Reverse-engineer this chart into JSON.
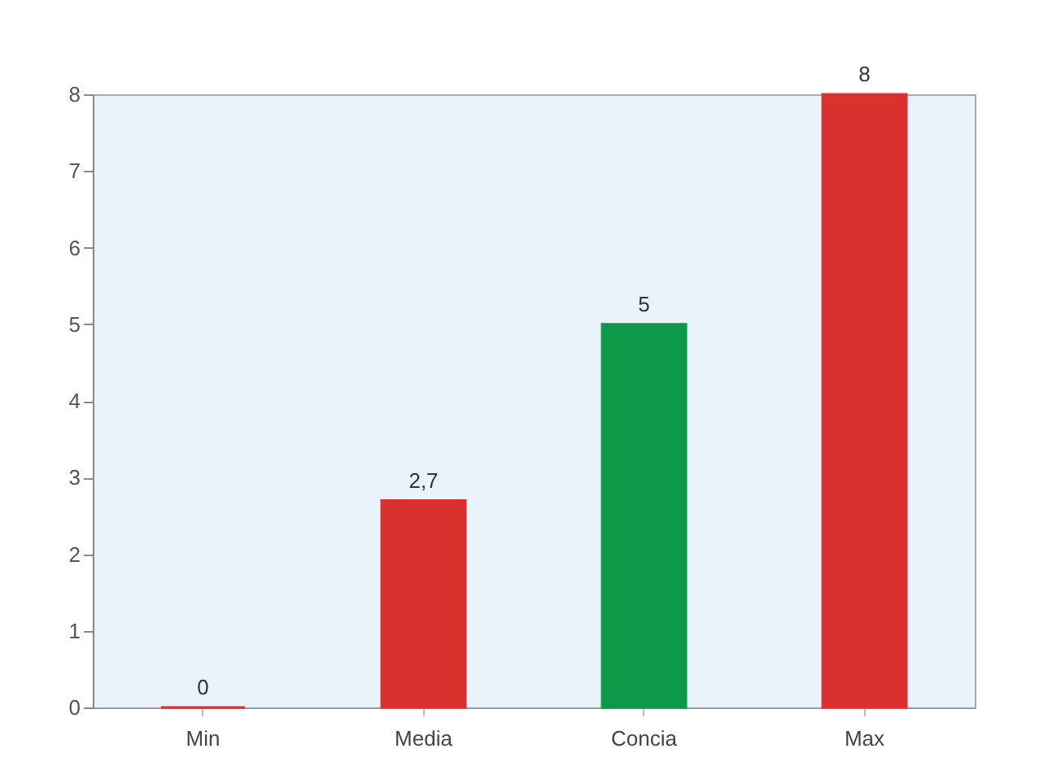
{
  "chart_data": {
    "type": "bar",
    "categories": [
      "Min",
      "Media",
      "Concia",
      "Max"
    ],
    "values": [
      0,
      2.7,
      5,
      8
    ],
    "colors": [
      "#d8312e",
      "#d8312e",
      "#0c9a48",
      "#d8312e"
    ],
    "value_labels": [
      "0",
      "2,7",
      "5",
      "8"
    ],
    "ylim": [
      0,
      8
    ],
    "yticks": [
      0,
      1,
      2,
      3,
      4,
      5,
      6,
      7,
      8
    ]
  }
}
